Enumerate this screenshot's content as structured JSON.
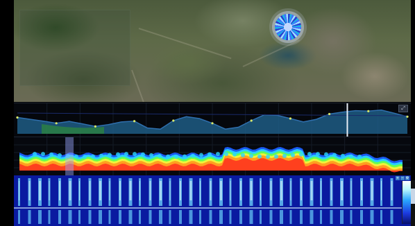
{
  "map": {
    "radar_marker_icon": "radar-sweep-icon"
  },
  "profile": {
    "zoom_chip_label": "",
    "elevation_points": [
      0.62,
      0.55,
      0.48,
      0.4,
      0.47,
      0.38,
      0.28,
      0.35,
      0.45,
      0.48,
      0.22,
      0.18,
      0.5,
      0.65,
      0.58,
      0.4,
      0.18,
      0.25,
      0.5,
      0.72,
      0.7,
      0.58,
      0.45,
      0.55,
      0.75,
      0.82,
      0.88,
      0.86,
      0.9,
      0.78,
      0.65
    ],
    "cursor_position": 0.84,
    "colors": {
      "fill": "#1f5c85",
      "line": "#2f6fae",
      "dots": "#d8e86a",
      "cursor": "#e8eef6"
    }
  },
  "spectrum": {
    "marker_position": 0.14,
    "colors": [
      "#ff3b1f",
      "#ff9a1f",
      "#f8f23a",
      "#66ff4a",
      "#2ad6ff",
      "#1b5fff"
    ]
  },
  "waterfall": {
    "colors": {
      "base": "#0a1aa0",
      "streak": "#6fd8ff",
      "bright": "#e8fbff"
    }
  }
}
